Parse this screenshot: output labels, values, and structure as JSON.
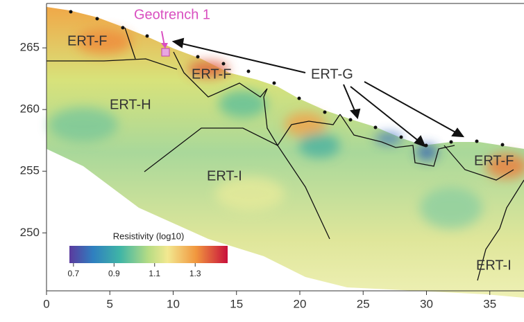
{
  "chart_data": {
    "type": "section",
    "xlim": [
      0,
      37.7
    ],
    "ylim": [
      245.3,
      268.6
    ],
    "xticks": [
      0,
      5,
      10,
      15,
      20,
      25,
      30,
      35
    ],
    "yticks": [
      250,
      255,
      260,
      265
    ],
    "annotations": [
      "Geotrench 1",
      "ERT-F",
      "ERT-F",
      "ERT-F",
      "ERT-G",
      "ERT-H",
      "ERT-I",
      "ERT-I"
    ],
    "colorbar": {
      "title": "Resistivity (log10)",
      "lim": [
        0.68,
        1.46
      ],
      "ticks": [
        0.7,
        0.9,
        1.1,
        1.3
      ]
    }
  }
}
